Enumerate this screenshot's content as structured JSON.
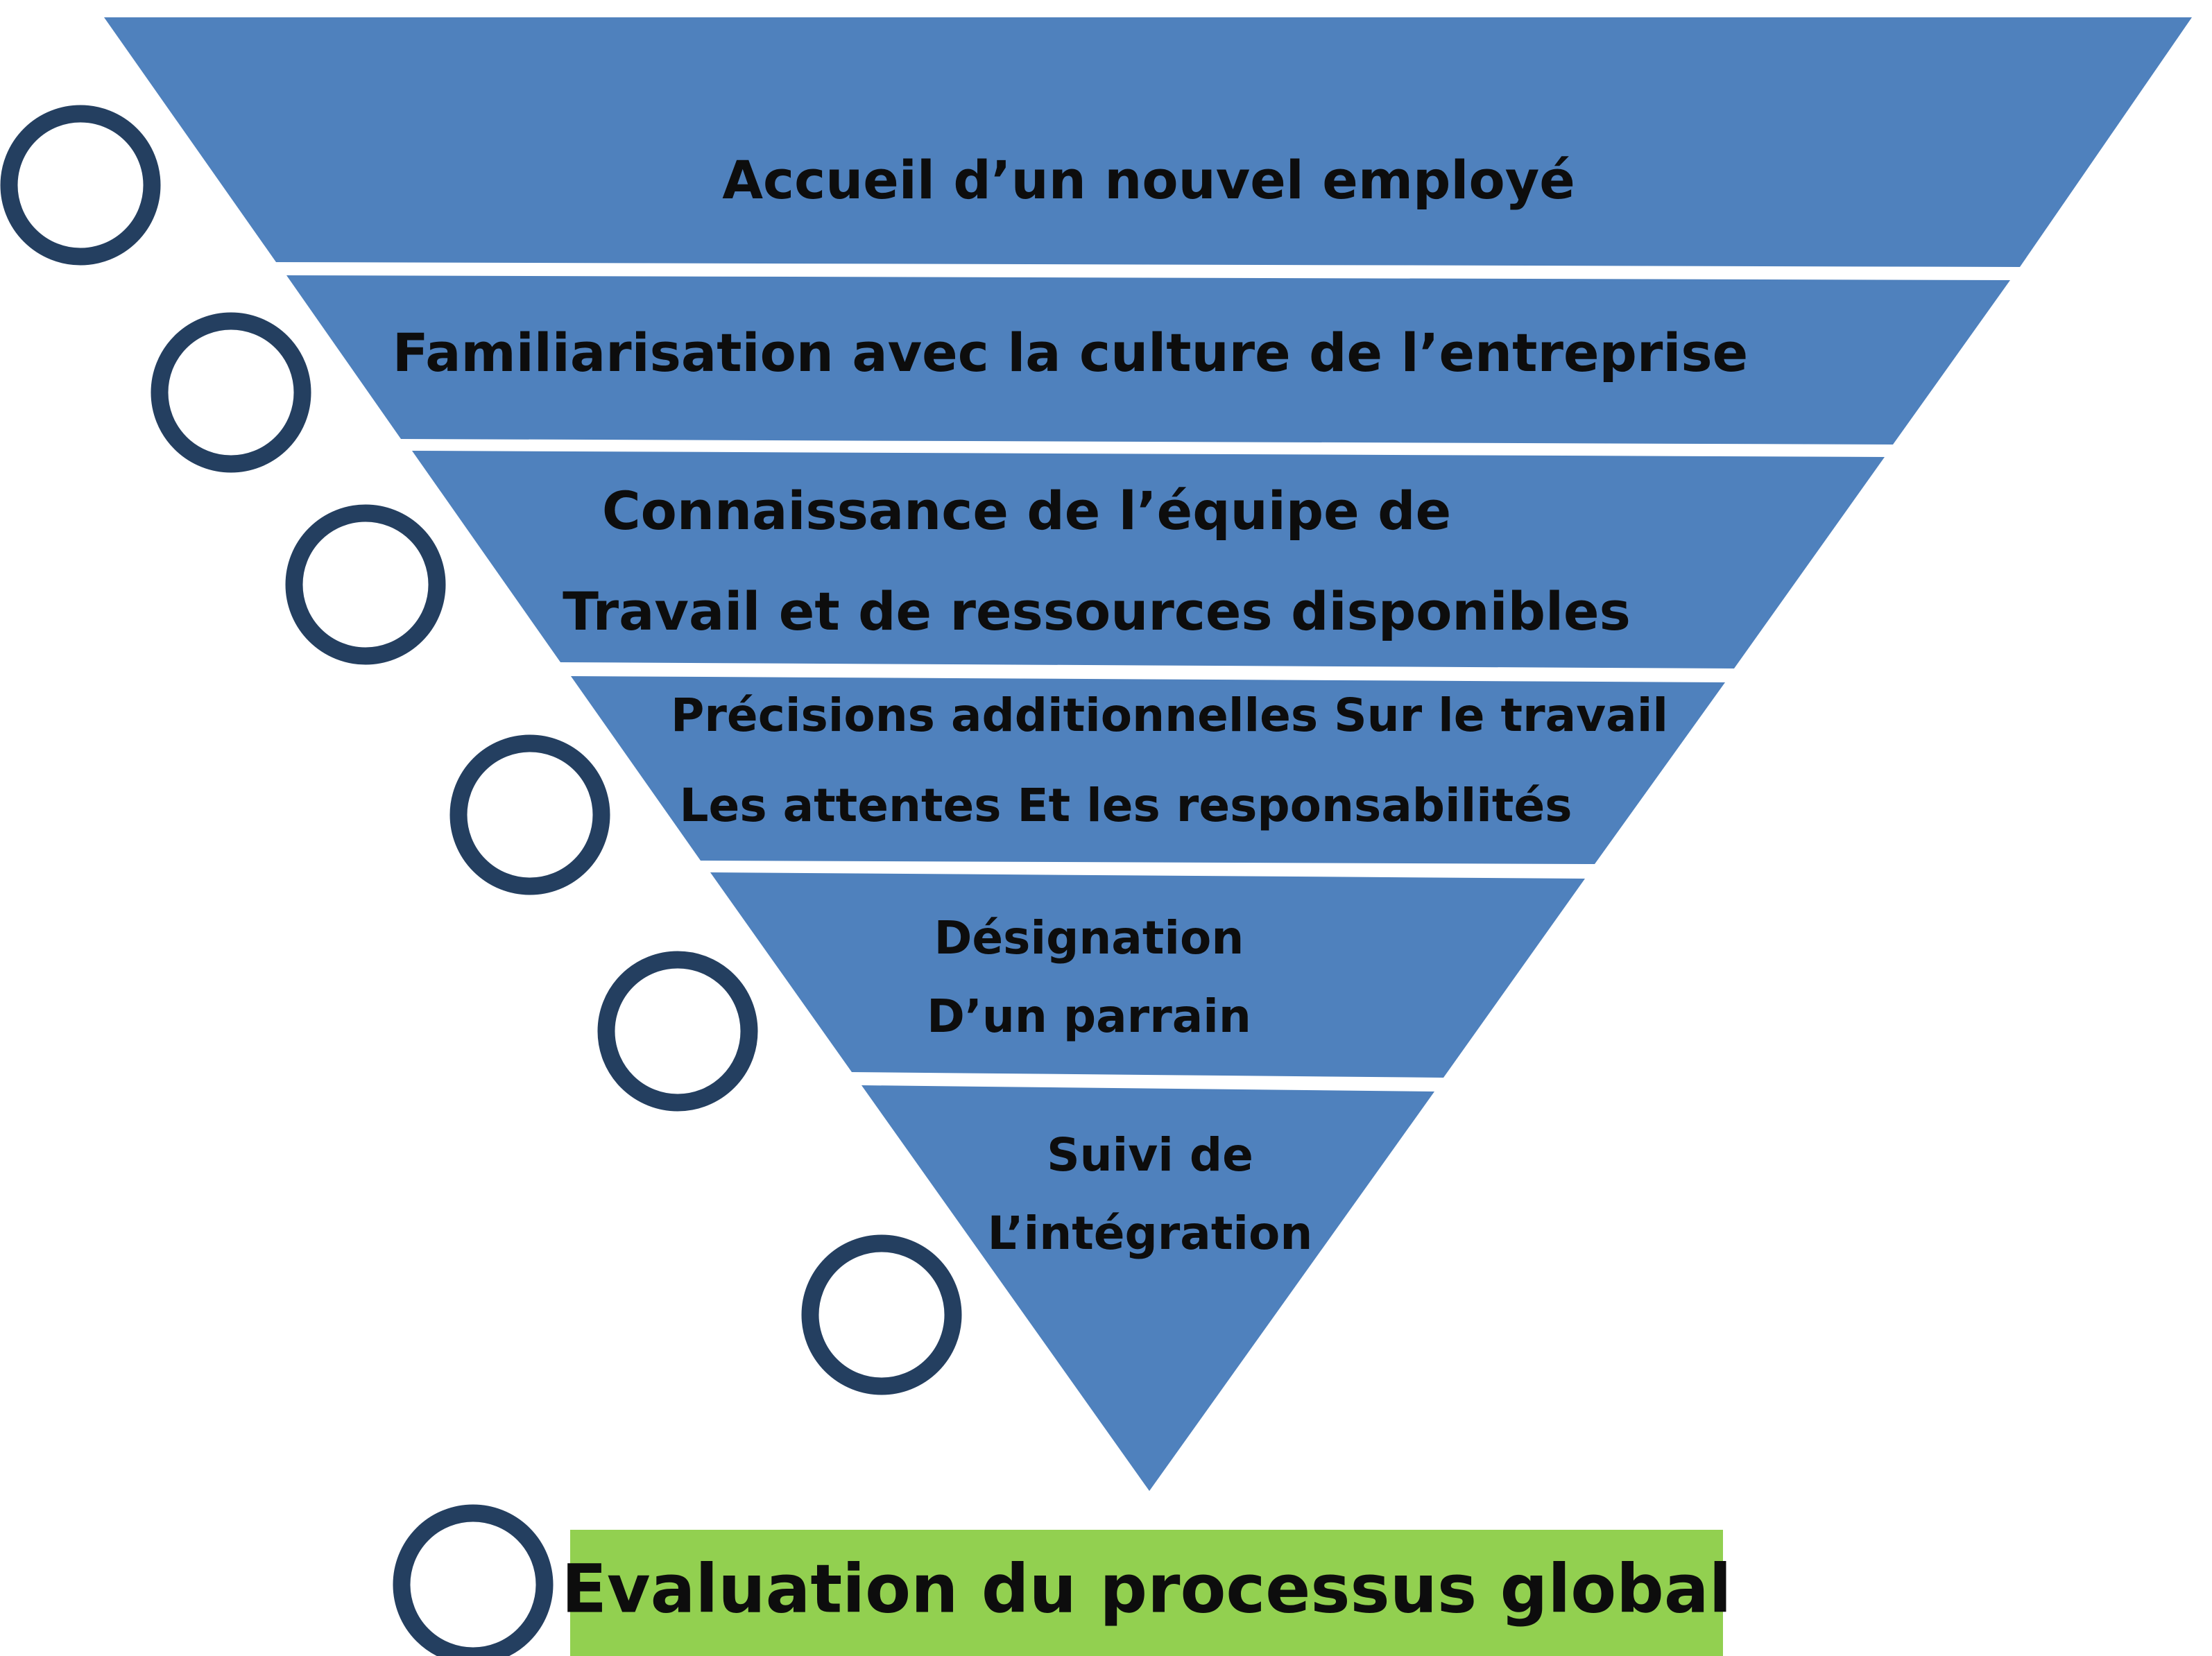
{
  "diagram": {
    "colors": {
      "band_fill": "#4f81bd",
      "band_separator": "#ffffff",
      "circle_stroke": "#243f60",
      "footer_fill": "#92d050",
      "text": "#0d0d0d"
    },
    "steps": [
      {
        "lines": [
          "Accueil d’un nouvel employé"
        ]
      },
      {
        "lines": [
          "Familiarisation avec la culture de l’entreprise"
        ]
      },
      {
        "lines": [
          "Connaissance de l’équipe de",
          "Travail et de ressources disponibles"
        ]
      },
      {
        "lines": [
          "Précisions additionnelles Sur le travail",
          "Les attentes Et les responsabilités"
        ]
      },
      {
        "lines": [
          "Désignation",
          "D’un parrain"
        ]
      },
      {
        "lines": [
          "Suivi de",
          "L’intégration"
        ]
      }
    ],
    "final_step": {
      "label": "Evaluation du processus global"
    }
  }
}
